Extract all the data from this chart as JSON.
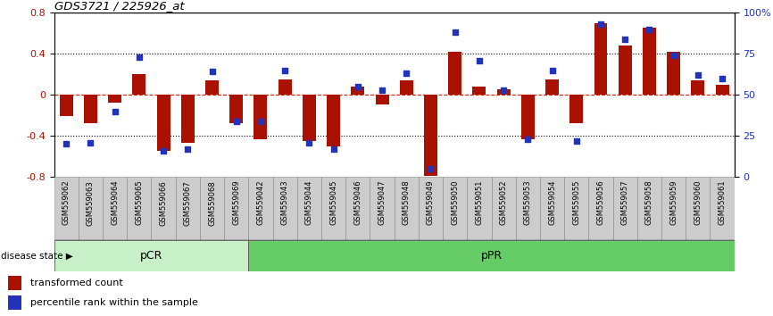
{
  "title": "GDS3721 / 225926_at",
  "categories": [
    "GSM559062",
    "GSM559063",
    "GSM559064",
    "GSM559065",
    "GSM559066",
    "GSM559067",
    "GSM559068",
    "GSM559069",
    "GSM559042",
    "GSM559043",
    "GSM559044",
    "GSM559045",
    "GSM559046",
    "GSM559047",
    "GSM559048",
    "GSM559049",
    "GSM559050",
    "GSM559051",
    "GSM559052",
    "GSM559053",
    "GSM559054",
    "GSM559055",
    "GSM559056",
    "GSM559057",
    "GSM559058",
    "GSM559059",
    "GSM559060",
    "GSM559061"
  ],
  "transformed_count": [
    -0.21,
    -0.28,
    -0.08,
    0.2,
    -0.55,
    -0.47,
    0.14,
    -0.28,
    -0.43,
    0.15,
    -0.45,
    -0.5,
    0.08,
    -0.09,
    0.14,
    -0.79,
    0.42,
    0.08,
    0.05,
    -0.43,
    0.15,
    -0.28,
    0.7,
    0.48,
    0.65,
    0.42,
    0.14,
    0.1
  ],
  "percentile_rank": [
    20,
    21,
    40,
    73,
    16,
    17,
    64,
    34,
    34,
    65,
    21,
    17,
    55,
    53,
    63,
    5,
    88,
    71,
    53,
    23,
    65,
    22,
    93,
    84,
    90,
    74,
    62,
    60
  ],
  "pcr_count": 8,
  "ppr_count": 20,
  "ylim": [
    -0.8,
    0.8
  ],
  "yticks_left": [
    -0.8,
    -0.4,
    0,
    0.4,
    0.8
  ],
  "yticks_right": [
    0,
    25,
    50,
    75,
    100
  ],
  "bar_color": "#AA1100",
  "dot_color": "#2233BB",
  "pcr_color": "#c8f0c8",
  "ppr_color": "#66cc66",
  "bg_color": "#FFFFFF",
  "tick_bg_color": "#cccccc",
  "zero_line_color": "#CC2200",
  "legend_items": [
    "transformed count",
    "percentile rank within the sample"
  ]
}
